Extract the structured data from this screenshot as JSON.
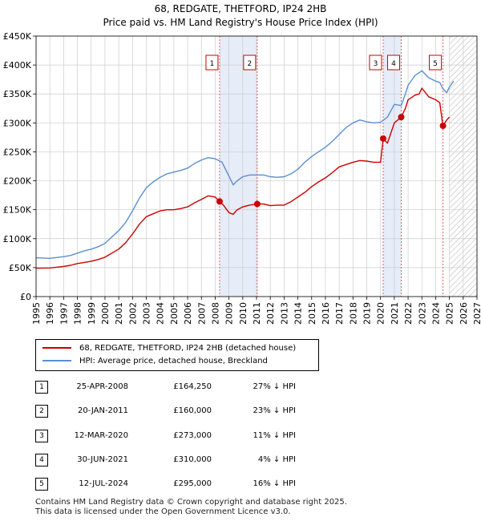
{
  "title_line1": "68, REDGATE, THETFORD, IP24 2HB",
  "title_line2": "Price paid vs. HM Land Registry's House Price Index (HPI)",
  "colors": {
    "property": "#cc0000",
    "hpi": "#5b8fcf",
    "shade": "#e6ecf8",
    "grid": "#cccccc",
    "marker_line": "#e06060"
  },
  "legend": {
    "property_label": "68, REDGATE, THETFORD, IP24 2HB (detached house)",
    "hpi_label": "HPI: Average price, detached house, Breckland"
  },
  "sales": [
    {
      "num": "1",
      "date": "25-APR-2008",
      "price": "£164,250",
      "hpi": "27% ↓ HPI"
    },
    {
      "num": "2",
      "date": "20-JAN-2011",
      "price": "£160,000",
      "hpi": "23% ↓ HPI"
    },
    {
      "num": "3",
      "date": "12-MAR-2020",
      "price": "£273,000",
      "hpi": "11% ↓ HPI"
    },
    {
      "num": "4",
      "date": "30-JUN-2021",
      "price": "£310,000",
      "hpi": "4% ↓ HPI"
    },
    {
      "num": "5",
      "date": "12-JUL-2024",
      "price": "£295,000",
      "hpi": "16% ↓ HPI"
    }
  ],
  "footer_line1": "Contains HM Land Registry data © Crown copyright and database right 2025.",
  "footer_line2": "This data is licensed under the Open Government Licence v3.0.",
  "chart_data": {
    "type": "line",
    "title": "68, REDGATE, THETFORD, IP24 2HB",
    "subtitle": "Price paid vs. HM Land Registry's House Price Index (HPI)",
    "xlim": [
      1995,
      2027
    ],
    "ylim": [
      0,
      450000
    ],
    "x_ticks": [
      "1995",
      "1996",
      "1997",
      "1998",
      "1999",
      "2000",
      "2001",
      "2002",
      "2003",
      "2004",
      "2005",
      "2006",
      "2007",
      "2008",
      "2009",
      "2010",
      "2011",
      "2012",
      "2013",
      "2014",
      "2015",
      "2016",
      "2017",
      "2018",
      "2019",
      "2020",
      "2021",
      "2022",
      "2023",
      "2024",
      "2025",
      "2026",
      "2027"
    ],
    "y_ticks": [
      {
        "value": 0,
        "label": "£0"
      },
      {
        "value": 50000,
        "label": "£50K"
      },
      {
        "value": 100000,
        "label": "£100K"
      },
      {
        "value": 150000,
        "label": "£150K"
      },
      {
        "value": 200000,
        "label": "£200K"
      },
      {
        "value": 250000,
        "label": "£250K"
      },
      {
        "value": 300000,
        "label": "£300K"
      },
      {
        "value": 350000,
        "label": "£350K"
      },
      {
        "value": 400000,
        "label": "£400K"
      },
      {
        "value": 450000,
        "label": "£450K"
      }
    ],
    "grid": true,
    "hatched_from": 2025.0,
    "shaded_spans": [
      [
        2008.32,
        2011.05
      ],
      [
        2020.19,
        2021.5
      ]
    ],
    "markers": [
      {
        "label": "1",
        "x": 2008.32,
        "y": 164250
      },
      {
        "label": "2",
        "x": 2011.05,
        "y": 160000
      },
      {
        "label": "3",
        "x": 2020.19,
        "y": 273000
      },
      {
        "label": "4",
        "x": 2021.5,
        "y": 310000
      },
      {
        "label": "5",
        "x": 2024.53,
        "y": 295000
      }
    ],
    "series": [
      {
        "name": "68, REDGATE, THETFORD, IP24 2HB (detached house)",
        "x": [
          1995.0,
          1996.0,
          1997.0,
          1997.5,
          1998.0,
          1998.5,
          1999.0,
          1999.5,
          2000.0,
          2000.5,
          2001.0,
          2001.5,
          2002.0,
          2002.5,
          2003.0,
          2003.5,
          2004.0,
          2004.5,
          2005.0,
          2005.5,
          2006.0,
          2006.5,
          2007.0,
          2007.5,
          2008.0,
          2008.32,
          2008.6,
          2009.0,
          2009.3,
          2009.6,
          2010.0,
          2010.5,
          2011.05,
          2011.5,
          2012.0,
          2012.5,
          2013.0,
          2013.5,
          2014.0,
          2014.5,
          2015.0,
          2015.5,
          2016.0,
          2016.5,
          2017.0,
          2017.5,
          2018.0,
          2018.5,
          2019.0,
          2019.5,
          2020.0,
          2020.19,
          2020.5,
          2021.0,
          2021.5,
          2021.8,
          2022.0,
          2022.5,
          2022.8,
          2023.0,
          2023.5,
          2024.0,
          2024.3,
          2024.53,
          2024.8,
          2025.0
        ],
        "values": [
          49000,
          49500,
          52000,
          54000,
          57000,
          59000,
          61000,
          64000,
          68000,
          75000,
          82000,
          93000,
          108000,
          125000,
          138000,
          143000,
          148000,
          150000,
          150000,
          152000,
          155000,
          162000,
          168000,
          174000,
          172000,
          164250,
          158000,
          145000,
          142000,
          150000,
          155000,
          158000,
          160000,
          160000,
          157000,
          158000,
          158000,
          164000,
          172000,
          180000,
          190000,
          198000,
          205000,
          214000,
          224000,
          228000,
          232000,
          235000,
          234000,
          232000,
          232000,
          273000,
          265000,
          300000,
          310000,
          325000,
          340000,
          348000,
          350000,
          360000,
          345000,
          340000,
          335000,
          295000,
          305000,
          310000
        ]
      },
      {
        "name": "HPI: Average price, detached house, Breckland",
        "x": [
          1995.0,
          1996.0,
          1997.0,
          1997.5,
          1998.0,
          1998.5,
          1999.0,
          1999.5,
          2000.0,
          2000.5,
          2001.0,
          2001.5,
          2002.0,
          2002.5,
          2003.0,
          2003.5,
          2004.0,
          2004.5,
          2005.0,
          2005.5,
          2006.0,
          2006.5,
          2007.0,
          2007.5,
          2008.0,
          2008.5,
          2009.0,
          2009.3,
          2009.6,
          2010.0,
          2010.5,
          2011.0,
          2011.5,
          2012.0,
          2012.5,
          2013.0,
          2013.5,
          2014.0,
          2014.5,
          2015.0,
          2015.5,
          2016.0,
          2016.5,
          2017.0,
          2017.5,
          2018.0,
          2018.5,
          2019.0,
          2019.5,
          2020.0,
          2020.5,
          2021.0,
          2021.5,
          2021.8,
          2022.0,
          2022.5,
          2023.0,
          2023.5,
          2024.0,
          2024.3,
          2024.5,
          2024.8,
          2025.0,
          2025.3
        ],
        "values": [
          67000,
          66000,
          69000,
          71000,
          75000,
          79000,
          82000,
          86000,
          92000,
          103000,
          114000,
          128000,
          148000,
          170000,
          188000,
          198000,
          206000,
          212000,
          215000,
          218000,
          222000,
          230000,
          236000,
          240000,
          238000,
          232000,
          208000,
          193000,
          200000,
          207000,
          210000,
          210000,
          210000,
          207000,
          206000,
          207000,
          212000,
          220000,
          232000,
          242000,
          250000,
          258000,
          268000,
          280000,
          292000,
          300000,
          305000,
          302000,
          300000,
          301000,
          310000,
          332000,
          330000,
          350000,
          365000,
          382000,
          390000,
          378000,
          372000,
          370000,
          360000,
          352000,
          362000,
          372000
        ]
      }
    ]
  }
}
